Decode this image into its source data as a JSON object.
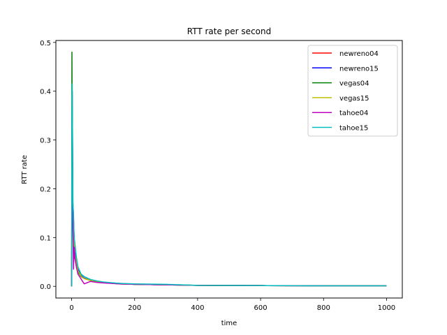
{
  "chart_data": {
    "type": "line",
    "title": "RTT rate per second",
    "xlabel": "time",
    "ylabel": "RTT rate",
    "xlim": [
      -50,
      1050
    ],
    "ylim": [
      -0.024,
      0.504
    ],
    "xticks": [
      0,
      200,
      400,
      600,
      800,
      1000
    ],
    "yticks": [
      0.0,
      0.1,
      0.2,
      0.3,
      0.4,
      0.5
    ],
    "ytick_labels": [
      "0.0",
      "0.1",
      "0.2",
      "0.3",
      "0.4",
      "0.5"
    ],
    "grid": false,
    "legend_position": "top-right",
    "series": [
      {
        "name": "newreno04",
        "color": "#ff0000",
        "x": [
          0,
          1,
          2,
          4,
          6,
          8,
          10,
          15,
          20,
          30,
          40,
          60,
          80,
          100,
          150,
          200,
          300,
          400,
          600,
          800,
          1000
        ],
        "y": [
          0.0,
          0.21,
          0.36,
          0.17,
          0.14,
          0.09,
          0.06,
          0.045,
          0.03,
          0.02,
          0.016,
          0.012,
          0.009,
          0.008,
          0.005,
          0.004,
          0.003,
          0.002,
          0.0015,
          0.001,
          0.001
        ]
      },
      {
        "name": "newreno15",
        "color": "#0000ff",
        "x": [
          0,
          1,
          2,
          4,
          6,
          8,
          10,
          15,
          20,
          30,
          40,
          60,
          80,
          100,
          150,
          200,
          300,
          400,
          600,
          800,
          1000
        ],
        "y": [
          0.0,
          0.3,
          0.4,
          0.16,
          0.13,
          0.1,
          0.07,
          0.05,
          0.035,
          0.022,
          0.017,
          0.012,
          0.01,
          0.008,
          0.006,
          0.004,
          0.003,
          0.002,
          0.0015,
          0.001,
          0.001
        ]
      },
      {
        "name": "vegas04",
        "color": "#008000",
        "x": [
          0,
          1,
          2,
          4,
          6,
          8,
          10,
          15,
          20,
          30,
          40,
          60,
          80,
          100,
          150,
          200,
          300,
          400,
          600,
          800,
          1000
        ],
        "y": [
          0.0,
          0.48,
          0.3,
          0.14,
          0.1,
          0.08,
          0.06,
          0.045,
          0.03,
          0.02,
          0.016,
          0.012,
          0.009,
          0.008,
          0.005,
          0.004,
          0.003,
          0.002,
          0.0015,
          0.001,
          0.001
        ]
      },
      {
        "name": "vegas15",
        "color": "#bfbf00",
        "x": [
          0,
          1,
          2,
          4,
          6,
          8,
          10,
          15,
          20,
          30,
          40,
          60,
          80,
          100,
          150,
          200,
          300,
          400,
          600,
          800,
          1000
        ],
        "y": [
          0.0,
          0.25,
          0.33,
          0.15,
          0.12,
          0.09,
          0.065,
          0.048,
          0.032,
          0.021,
          0.016,
          0.012,
          0.009,
          0.008,
          0.005,
          0.004,
          0.003,
          0.002,
          0.0015,
          0.001,
          0.001
        ]
      },
      {
        "name": "tahoe04",
        "color": "#bf00bf",
        "x": [
          0,
          1,
          2,
          4,
          6,
          8,
          10,
          15,
          20,
          30,
          40,
          60,
          80,
          100,
          150,
          200,
          300,
          400,
          600,
          800,
          1000
        ],
        "y": [
          0.0,
          0.2,
          0.3,
          0.12,
          0.035,
          0.08,
          0.06,
          0.04,
          0.025,
          0.015,
          0.005,
          0.01,
          0.008,
          0.007,
          0.005,
          0.004,
          0.003,
          0.002,
          0.0015,
          0.001,
          0.001
        ]
      },
      {
        "name": "tahoe15",
        "color": "#00bfbf",
        "x": [
          0,
          1,
          2,
          4,
          6,
          8,
          10,
          15,
          20,
          30,
          40,
          60,
          80,
          100,
          150,
          200,
          300,
          400,
          600,
          800,
          1000
        ],
        "y": [
          0.0,
          0.35,
          0.415,
          0.17,
          0.15,
          0.1,
          0.09,
          0.06,
          0.04,
          0.025,
          0.02,
          0.014,
          0.011,
          0.009,
          0.006,
          0.005,
          0.004,
          0.002,
          0.0015,
          0.001,
          0.001
        ]
      }
    ]
  }
}
